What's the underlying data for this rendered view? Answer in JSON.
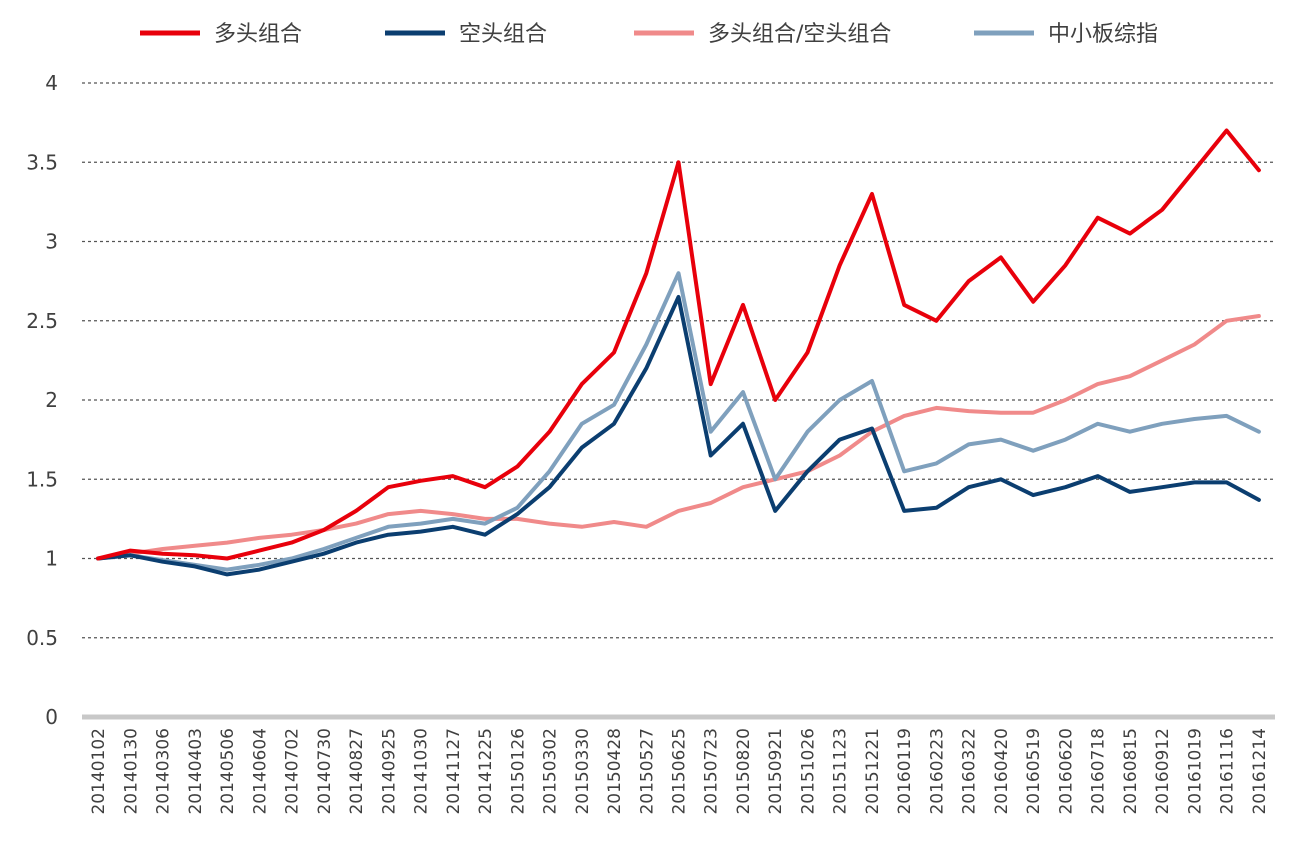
{
  "chart_data": {
    "type": "line",
    "title": "",
    "xlabel": "",
    "ylabel": "",
    "ylim": [
      0,
      4
    ],
    "yticks": [
      0,
      0.5,
      1,
      1.5,
      2,
      2.5,
      3,
      3.5,
      4
    ],
    "ytick_labels": [
      "0",
      "0.5",
      "1",
      "1.5",
      "2",
      "2.5",
      "3",
      "3.5",
      "4"
    ],
    "grid": "horizontal-dashed",
    "legend_position": "top",
    "x_tick_labels": [
      "20140102",
      "20140130",
      "20140306",
      "20140403",
      "20140506",
      "20140604",
      "20140702",
      "20140730",
      "20140827",
      "20140925",
      "20141030",
      "20141127",
      "20141225",
      "20150126",
      "20150302",
      "20150330",
      "20150428",
      "20150527",
      "20150625",
      "20150723",
      "20150820",
      "20150921",
      "20151026",
      "20151123",
      "20151221",
      "20160119",
      "20160223",
      "20160322",
      "20160420",
      "20160519",
      "20160620",
      "20160718",
      "20160815",
      "20160912",
      "20161019",
      "20161116",
      "20161214"
    ],
    "series": [
      {
        "name": "多头组合",
        "color": "#e8000b",
        "values": [
          1.0,
          1.05,
          1.03,
          1.02,
          1.0,
          1.05,
          1.1,
          1.18,
          1.3,
          1.45,
          1.49,
          1.52,
          1.45,
          1.58,
          1.8,
          2.1,
          2.3,
          2.8,
          3.5,
          2.1,
          2.6,
          2.0,
          2.3,
          2.85,
          3.3,
          2.6,
          2.5,
          2.75,
          2.9,
          2.62,
          2.85,
          3.15,
          3.05,
          3.2,
          3.45,
          3.7,
          3.45
        ]
      },
      {
        "name": "空头组合",
        "color": "#0b3e70",
        "values": [
          1.0,
          1.02,
          0.98,
          0.95,
          0.9,
          0.93,
          0.98,
          1.03,
          1.1,
          1.15,
          1.17,
          1.2,
          1.15,
          1.28,
          1.45,
          1.7,
          1.85,
          2.2,
          2.65,
          1.65,
          1.85,
          1.3,
          1.55,
          1.75,
          1.82,
          1.3,
          1.32,
          1.45,
          1.5,
          1.4,
          1.45,
          1.52,
          1.42,
          1.45,
          1.48,
          1.48,
          1.37
        ]
      },
      {
        "name": "多头组合/空头组合",
        "color": "#f08a8a",
        "values": [
          1.0,
          1.03,
          1.06,
          1.08,
          1.1,
          1.13,
          1.15,
          1.18,
          1.22,
          1.28,
          1.3,
          1.28,
          1.25,
          1.25,
          1.22,
          1.2,
          1.23,
          1.2,
          1.3,
          1.35,
          1.45,
          1.5,
          1.55,
          1.65,
          1.8,
          1.9,
          1.95,
          1.93,
          1.92,
          1.92,
          2.0,
          2.1,
          2.15,
          2.25,
          2.35,
          2.5,
          2.53
        ]
      },
      {
        "name": "中小板综指",
        "color": "#7fa0bd",
        "values": [
          1.0,
          1.02,
          0.99,
          0.96,
          0.93,
          0.96,
          1.0,
          1.06,
          1.13,
          1.2,
          1.22,
          1.25,
          1.22,
          1.32,
          1.55,
          1.85,
          1.97,
          2.35,
          2.8,
          1.8,
          2.05,
          1.5,
          1.8,
          2.0,
          2.12,
          1.55,
          1.6,
          1.72,
          1.75,
          1.68,
          1.75,
          1.85,
          1.8,
          1.85,
          1.88,
          1.9,
          1.8
        ]
      }
    ]
  }
}
